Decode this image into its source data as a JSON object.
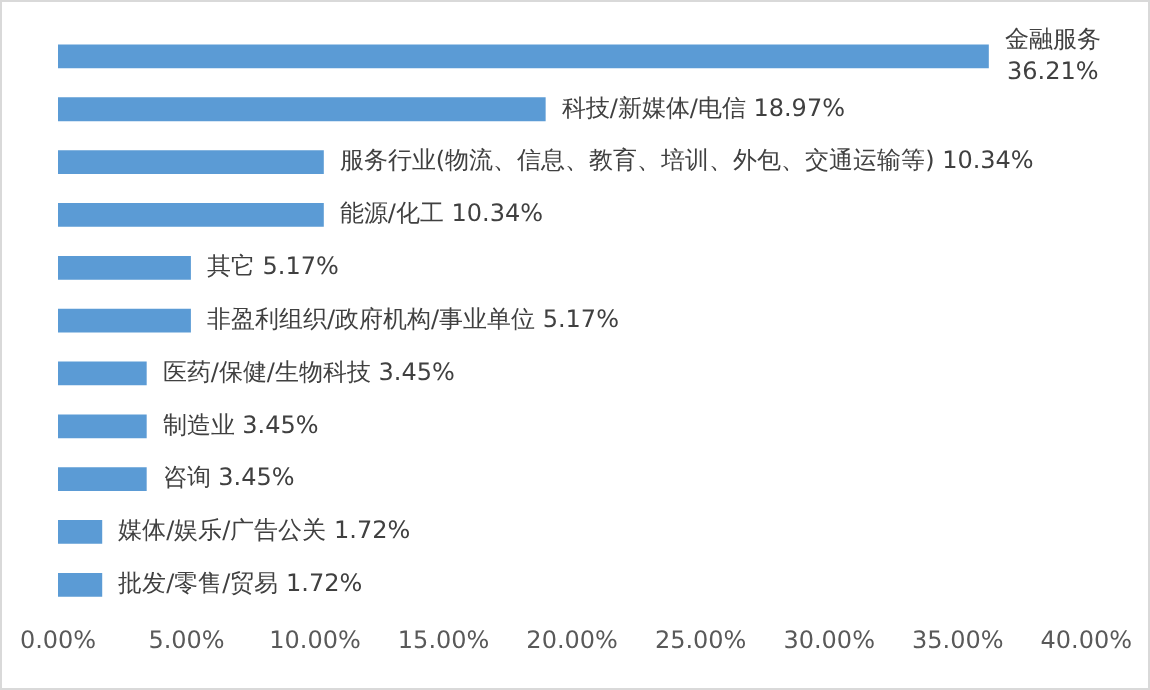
{
  "chart_data": {
    "type": "bar",
    "orientation": "horizontal",
    "tick_labels": "x",
    "grid": false,
    "legend": false,
    "categories": [
      "金融服务",
      "科技/新媒体/电信",
      "服务行业(物流、信息、教育、培训、外包、交通运输等)",
      "能源/化工",
      "其它",
      "非盈利组织/政府机构/事业单位",
      "医药/保健/生物科技",
      "制造业",
      "咨询",
      "媒体/娱乐/广告公关",
      "批发/零售/贸易"
    ],
    "values": [
      36.21,
      18.97,
      10.34,
      10.34,
      5.17,
      5.17,
      3.45,
      3.45,
      3.45,
      1.72,
      1.72
    ],
    "value_labels": [
      "36.21%",
      "18.97%",
      "10.34%",
      "10.34%",
      "5.17%",
      "5.17%",
      "3.45%",
      "3.45%",
      "3.45%",
      "1.72%",
      "1.72%"
    ],
    "color": "#5b9bd5",
    "xlim": [
      0,
      40
    ],
    "xticks": [
      {
        "value": 0,
        "label": "0.00%"
      },
      {
        "value": 5,
        "label": "5.00%"
      },
      {
        "value": 10,
        "label": "10.00%"
      },
      {
        "value": 15,
        "label": "15.00%"
      },
      {
        "value": 20,
        "label": "20.00%"
      },
      {
        "value": 25,
        "label": "25.00%"
      },
      {
        "value": 30,
        "label": "30.00%"
      },
      {
        "value": 35,
        "label": "35.00%"
      },
      {
        "value": 40,
        "label": "40.00%"
      }
    ]
  }
}
